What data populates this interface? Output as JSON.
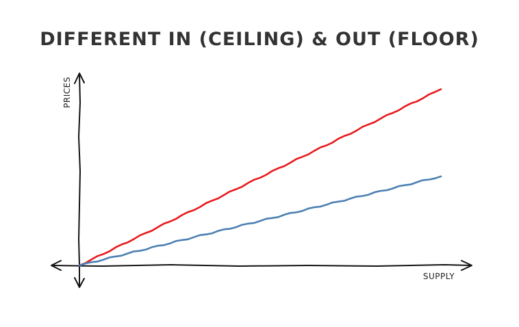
{
  "chart_data": {
    "type": "line",
    "title": "DIFFERENT IN (CEILING) & OUT (FLOOR)",
    "xlabel": "SUPPLY",
    "ylabel": "PRICES",
    "xlim": [
      0,
      1
    ],
    "ylim": [
      0,
      1
    ],
    "grid": false,
    "x": [
      0,
      1
    ],
    "series": [
      {
        "color": "#e8191b",
        "values": [
          0,
          0.93
        ]
      },
      {
        "color": "#4a7fb2",
        "values": [
          0,
          0.47
        ]
      }
    ]
  }
}
